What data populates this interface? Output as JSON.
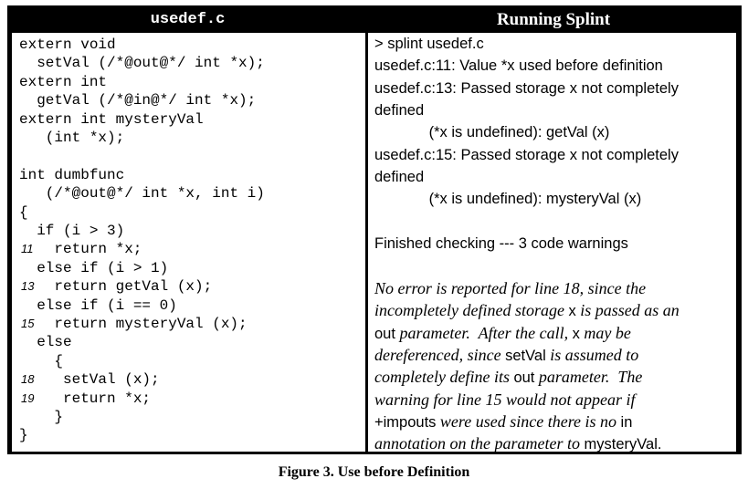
{
  "left_title": "usedef.c",
  "right_title": "Running Splint",
  "code": [
    {
      "num": "",
      "text": "extern void"
    },
    {
      "num": "",
      "text": "  setVal (/*@out@*/ int *x);"
    },
    {
      "num": "",
      "text": "extern int"
    },
    {
      "num": "",
      "text": "  getVal (/*@in@*/ int *x);"
    },
    {
      "num": "",
      "text": "extern int mysteryVal"
    },
    {
      "num": "",
      "text": "   (int *x);"
    },
    {
      "num": "",
      "text": ""
    },
    {
      "num": "",
      "text": "int dumbfunc"
    },
    {
      "num": "",
      "text": "   (/*@out@*/ int *x, int i)"
    },
    {
      "num": "",
      "text": "{"
    },
    {
      "num": "",
      "text": "  if (i > 3)"
    },
    {
      "num": "11",
      "text": "    return *x;"
    },
    {
      "num": "",
      "text": "  else if (i > 1)"
    },
    {
      "num": "13",
      "text": "    return getVal (x);"
    },
    {
      "num": "",
      "text": "  else if (i == 0)"
    },
    {
      "num": "15",
      "text": "    return mysteryVal (x);"
    },
    {
      "num": "",
      "text": "  else"
    },
    {
      "num": "",
      "text": "    {"
    },
    {
      "num": "18",
      "text": "     setVal (x);"
    },
    {
      "num": "19",
      "text": "     return *x;"
    },
    {
      "num": "",
      "text": "    }"
    },
    {
      "num": "",
      "text": "}"
    }
  ],
  "output": [
    "> splint usedef.c",
    "usedef.c:11: Value *x used before definition",
    "usedef.c:13: Passed storage x not completely",
    "defined",
    "             (*x is undefined): getVal (x)",
    "usedef.c:15: Passed storage x not completely",
    "defined",
    "             (*x is undefined): mysteryVal (x)",
    "",
    "Finished checking --- 3 code warnings"
  ],
  "note": [
    [
      {
        "t": "No error is reported for line 18, since the",
        "s": "i"
      }
    ],
    [
      {
        "t": "incompletely defined storage ",
        "s": "i"
      },
      {
        "t": "x",
        "s": "n"
      },
      {
        "t": " is passed as an",
        "s": "i"
      }
    ],
    [
      {
        "t": "out",
        "s": "n"
      },
      {
        "t": " parameter.  After the call, ",
        "s": "i"
      },
      {
        "t": "x",
        "s": "n"
      },
      {
        "t": " may be",
        "s": "i"
      }
    ],
    [
      {
        "t": "dereferenced, since ",
        "s": "i"
      },
      {
        "t": "setVal",
        "s": "n"
      },
      {
        "t": " is assumed to",
        "s": "i"
      }
    ],
    [
      {
        "t": "completely define its ",
        "s": "i"
      },
      {
        "t": "out",
        "s": "n"
      },
      {
        "t": " parameter.  The",
        "s": "i"
      }
    ],
    [
      {
        "t": "warning for line 15 would not appear if",
        "s": "i"
      }
    ],
    [
      {
        "t": "+impouts",
        "s": "n"
      },
      {
        "t": " were used since there is no ",
        "s": "i"
      },
      {
        "t": "in",
        "s": "n"
      }
    ],
    [
      {
        "t": "annotation on the parameter to ",
        "s": "i"
      },
      {
        "t": "mysteryVal",
        "s": "n"
      },
      {
        "t": ".",
        "s": "n"
      }
    ]
  ],
  "caption": "Figure 3.  Use before Definition"
}
